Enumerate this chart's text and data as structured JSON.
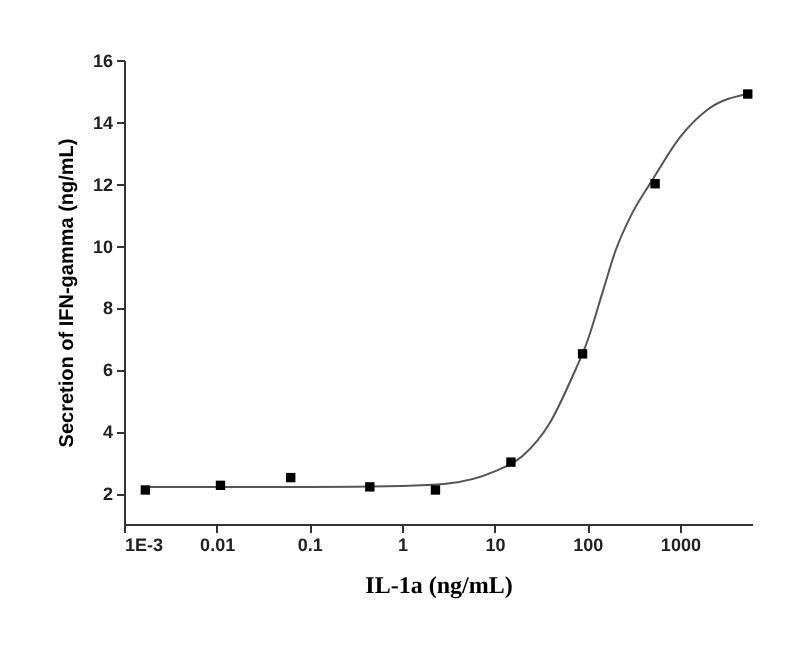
{
  "chart_data": {
    "type": "scatter",
    "xlabel": "IL-1a (ng/mL)",
    "ylabel": "Secretion of IFN-gamma (ng/mL)",
    "log": "x",
    "xlim": [
      0.001,
      6000
    ],
    "xticks": [
      {
        "value": 0.001,
        "label": "1E-3"
      },
      0.01,
      0.1,
      1,
      10,
      100,
      1000
    ],
    "ylim": [
      1,
      16
    ],
    "yticks": [
      2,
      4,
      6,
      8,
      10,
      12,
      14,
      16
    ],
    "grid": false,
    "marker": "square",
    "series": [
      {
        "type": "line",
        "color": "#555555",
        "x": [
          0.0017,
          0.01,
          0.1,
          1,
          3,
          10,
          20,
          40,
          70,
          100,
          150,
          200,
          300,
          500,
          1000,
          2000,
          5400
        ],
        "values": [
          2.2,
          2.2,
          2.2,
          2.23,
          2.3,
          2.7,
          3.2,
          4.3,
          5.8,
          6.9,
          8.6,
          9.8,
          11.0,
          12.1,
          13.5,
          14.4,
          14.9
        ],
        "marker": "none"
      },
      {
        "color": "#000000",
        "x": [
          0.0017,
          0.011,
          0.063,
          0.45,
          2.3,
          15,
          89,
          540,
          5400
        ],
        "values": [
          2.1,
          2.25,
          2.5,
          2.2,
          2.1,
          3.0,
          6.5,
          12.0,
          14.9
        ]
      }
    ]
  }
}
